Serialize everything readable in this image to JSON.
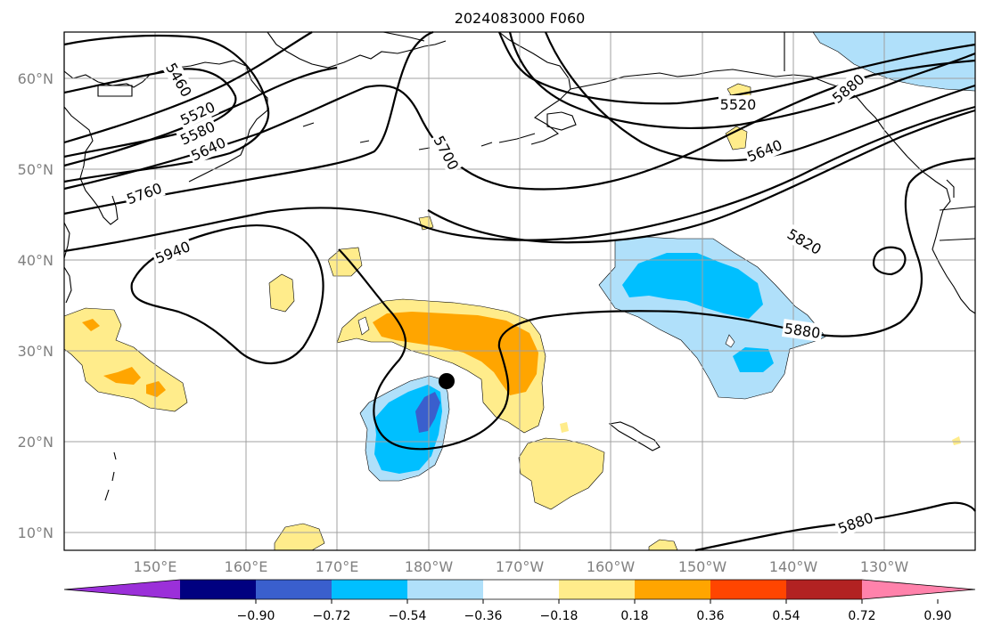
{
  "title": "2024083000 F060",
  "lat_labels": [
    "60°N",
    "50°N",
    "40°N",
    "30°N",
    "20°N",
    "10°N"
  ],
  "lon_labels": [
    "150°E",
    "160°E",
    "170°E",
    "180°W",
    "170°W",
    "160°W",
    "150°W",
    "140°W",
    "130°W"
  ],
  "colorbar": {
    "ticks": [
      "−0.90",
      "−0.72",
      "−0.54",
      "−0.36",
      "−0.18",
      "0.18",
      "0.36",
      "0.54",
      "0.72",
      "0.90"
    ],
    "colors": [
      "#9b30d9",
      "#000080",
      "#3a5fcd",
      "#00bfff",
      "#b0e0fa",
      "#ffffff",
      "#ffec8b",
      "#ffa500",
      "#ff4500",
      "#b22222",
      "#ff82ab"
    ]
  },
  "contour_labels": [
    "5460",
    "5520",
    "5580",
    "5640",
    "5760",
    "5940",
    "5700",
    "5520",
    "5640",
    "5820",
    "5880",
    "5880",
    "5880"
  ],
  "storm_marker": "black-dot",
  "colors": {
    "negative_light": "#b0e0fa",
    "negative": "#00bfff",
    "negative_strong": "#3a5fcd",
    "positive_light": "#ffec8b",
    "positive": "#ffa500"
  }
}
